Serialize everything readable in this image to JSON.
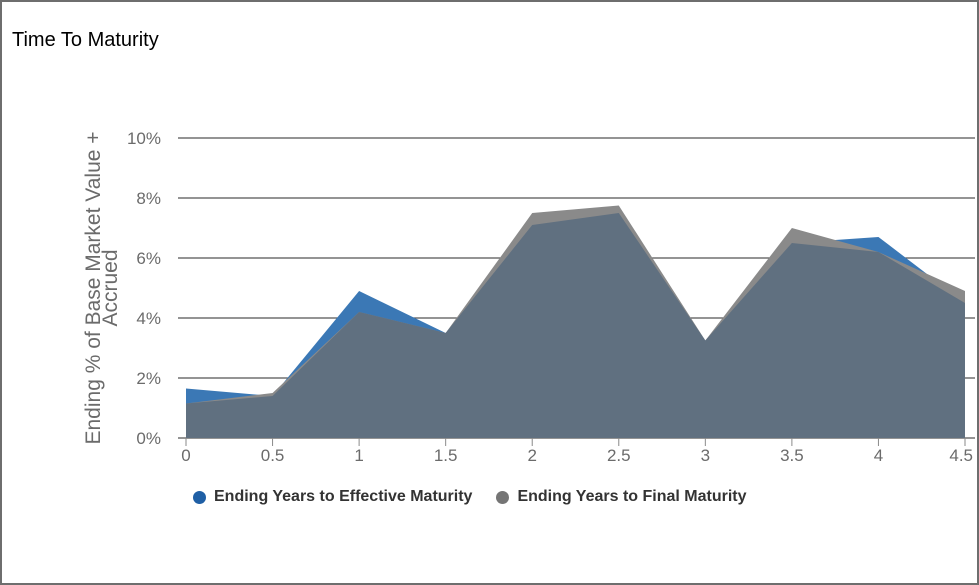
{
  "title": "Time To Maturity",
  "colors": {
    "effective": "#3b78b5",
    "final": "#8a8a8a",
    "overlap": "#607080",
    "grid": "#555555"
  },
  "legend": {
    "effective_label": "Ending Years to Effective Maturity",
    "final_label": "Ending Years to Final Maturity"
  },
  "chart_data": {
    "type": "area",
    "title": "Time To Maturity",
    "xlabel": "",
    "ylabel": "Ending % of Base Market Value + Accrued",
    "ylabel_lines": [
      "Ending % of Base Market Value +",
      "Accrued"
    ],
    "x": [
      0,
      0.5,
      1,
      1.5,
      2,
      2.5,
      3,
      3.5,
      4,
      4.5
    ],
    "x_tick_labels": [
      "0",
      "0.5",
      "1",
      "1.5",
      "2",
      "2.5",
      "3",
      "3.5",
      "4",
      "4.5"
    ],
    "y_tick_values": [
      0,
      2,
      4,
      6,
      8,
      10
    ],
    "y_tick_labels": [
      "0%",
      "2%",
      "4%",
      "6%",
      "8%",
      "10%"
    ],
    "ylim": [
      0,
      10
    ],
    "xlim": [
      0,
      4.5
    ],
    "grid": true,
    "legend_position": "bottom",
    "series": [
      {
        "name": "Ending Years to Effective Maturity",
        "values": [
          1.65,
          1.4,
          4.9,
          3.5,
          7.1,
          7.5,
          3.25,
          6.5,
          6.7,
          4.5
        ]
      },
      {
        "name": "Ending Years to Final Maturity",
        "values": [
          1.15,
          1.5,
          4.2,
          3.5,
          7.5,
          7.75,
          3.25,
          7.0,
          6.2,
          4.9
        ]
      }
    ]
  }
}
